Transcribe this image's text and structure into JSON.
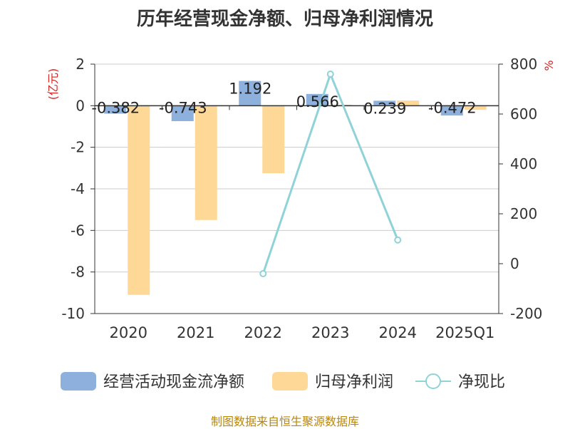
{
  "title": "历年经营现金净额、归母净利润情况",
  "footer": "制图数据来自恒生聚源数据库",
  "colors": {
    "cash": "#8eb0dc",
    "profit": "#fed897",
    "ratio": "#8fd3d8",
    "axis_unit": "#dd2222"
  },
  "chart_data": {
    "type": "bar",
    "categories": [
      "2020",
      "2021",
      "2022",
      "2023",
      "2024",
      "2025Q1"
    ],
    "series": [
      {
        "name": "经营活动现金流净额",
        "type": "bar",
        "axis": "left",
        "values": [
          -0.382,
          -0.743,
          1.192,
          0.566,
          0.239,
          -0.472
        ],
        "labels": [
          "-0.382",
          "-0.743",
          "1.192",
          "0.566",
          "0.239",
          "-0.472"
        ]
      },
      {
        "name": "归母净利润",
        "type": "bar",
        "axis": "left",
        "values": [
          -9.1,
          -5.5,
          -3.25,
          0.05,
          0.25,
          -0.2
        ]
      },
      {
        "name": "净现比",
        "type": "line",
        "axis": "right",
        "values": [
          null,
          null,
          -40,
          760,
          95,
          null
        ]
      }
    ],
    "y_left": {
      "unit": "(亿元)",
      "min": -10,
      "max": 2,
      "ticks": [
        "2",
        "0",
        "-2",
        "-4",
        "-6",
        "-8",
        "-10"
      ]
    },
    "y_right": {
      "unit": "%",
      "min": -200,
      "max": 800,
      "ticks": [
        "800",
        "600",
        "400",
        "200",
        "0",
        "-200"
      ]
    },
    "grid": true,
    "legend_position": "bottom"
  }
}
